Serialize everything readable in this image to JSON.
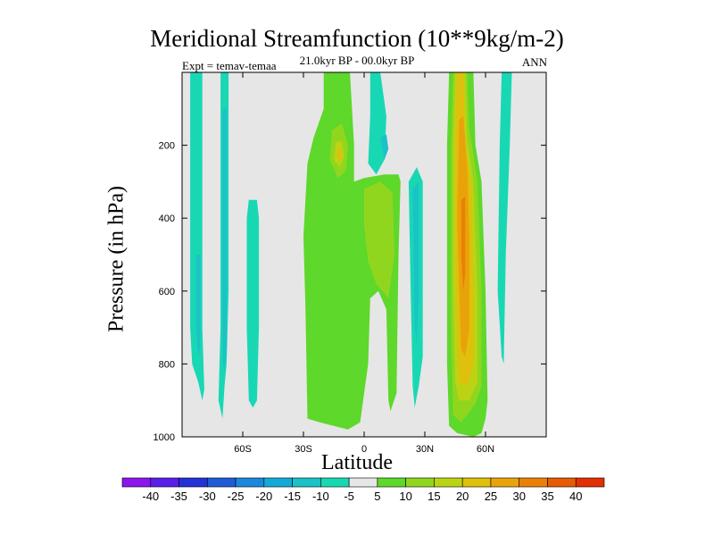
{
  "chart_data": {
    "type": "contour",
    "title": "Meridional Streamfunction (10**9kg/m-2)",
    "subtitle": "21.0kyr BP - 00.0kyr BP",
    "left_label": "Expt = temav-temaa",
    "right_label": "ANN",
    "xlabel": "Latitude",
    "ylabel": "Pressure (in hPa)",
    "xlim": [
      -90,
      90
    ],
    "ylim": [
      1000,
      0
    ],
    "x_ticks": [
      {
        "value": -60,
        "label": "60S"
      },
      {
        "value": -30,
        "label": "30S"
      },
      {
        "value": 0,
        "label": "0"
      },
      {
        "value": 30,
        "label": "30N"
      },
      {
        "value": 60,
        "label": "60N"
      }
    ],
    "y_ticks": [
      {
        "value": 200,
        "label": "200"
      },
      {
        "value": 400,
        "label": "400"
      },
      {
        "value": 600,
        "label": "600"
      },
      {
        "value": 800,
        "label": "800"
      },
      {
        "value": 1000,
        "label": "1000"
      }
    ],
    "background_color": "#e6e6e6",
    "colorbar": {
      "levels": [
        "-40",
        "-35",
        "-30",
        "-25",
        "-20",
        "-15",
        "-10",
        "-5",
        "5",
        "10",
        "15",
        "20",
        "25",
        "30",
        "35",
        "40"
      ],
      "colors": [
        "#8b16ec",
        "#5a1ee8",
        "#2431d8",
        "#1f5bd6",
        "#1c88dc",
        "#15a9d8",
        "#1bc2c7",
        "#18d8b4",
        "#e6e6e6",
        "#5ed82a",
        "#91d61e",
        "#bcd314",
        "#dfc00c",
        "#e9a30a",
        "#e98106",
        "#e65b04",
        "#e03004"
      ]
    },
    "regions": [
      {
        "name": "cell-neg-75S",
        "color": "#18d8b4",
        "points": [
          [
            -86,
            0
          ],
          [
            -80,
            0
          ],
          [
            -80,
            700
          ],
          [
            -79,
            870
          ],
          [
            -80,
            900
          ],
          [
            -82,
            850
          ],
          [
            -85,
            800
          ],
          [
            -86,
            700
          ]
        ]
      },
      {
        "name": "cell-neg-68S",
        "color": "#18d8b4",
        "points": [
          [
            -71,
            0
          ],
          [
            -67,
            0
          ],
          [
            -67,
            600
          ],
          [
            -68,
            800
          ],
          [
            -69,
            860
          ],
          [
            -70,
            950
          ],
          [
            -72,
            900
          ],
          [
            -71,
            700
          ]
        ]
      },
      {
        "name": "cell-neg-68S-inner",
        "color": "#1bc2c7",
        "points": [
          [
            -70,
            100
          ],
          [
            -68,
            100
          ],
          [
            -68,
            750
          ],
          [
            -69,
            820
          ],
          [
            -70,
            790
          ]
        ]
      },
      {
        "name": "cell-neg-78S-inner",
        "color": "#1bc2c7",
        "points": [
          [
            -83,
            500
          ],
          [
            -81,
            500
          ],
          [
            -81,
            750
          ],
          [
            -82,
            780
          ],
          [
            -83,
            700
          ]
        ]
      },
      {
        "name": "cell-neg-55S",
        "color": "#18d8b4",
        "points": [
          [
            -57,
            350
          ],
          [
            -53,
            350
          ],
          [
            -52,
            400
          ],
          [
            -52,
            700
          ],
          [
            -53,
            900
          ],
          [
            -55,
            920
          ],
          [
            -57,
            900
          ],
          [
            -58,
            700
          ],
          [
            -58,
            400
          ]
        ]
      },
      {
        "name": "cell-pos-center",
        "color": "#5ed82a",
        "points": [
          [
            -28,
            950
          ],
          [
            -29,
            650
          ],
          [
            -30,
            450
          ],
          [
            -28,
            250
          ],
          [
            -25,
            180
          ],
          [
            -20,
            100
          ],
          [
            -20,
            0
          ],
          [
            -7,
            0
          ],
          [
            -6,
            100
          ],
          [
            -5,
            200
          ],
          [
            -5,
            300
          ],
          [
            0,
            290
          ],
          [
            10,
            280
          ],
          [
            17,
            280
          ],
          [
            18,
            300
          ],
          [
            17,
            500
          ],
          [
            16,
            880
          ],
          [
            13,
            930
          ],
          [
            12,
            900
          ],
          [
            11,
            650
          ],
          [
            7,
            600
          ],
          [
            3,
            620
          ],
          [
            2,
            800
          ],
          [
            -2,
            960
          ],
          [
            -8,
            980
          ],
          [
            -15,
            970
          ],
          [
            -22,
            960
          ]
        ]
      },
      {
        "name": "cell-pos-15S-core",
        "color": "#91d61e",
        "points": [
          [
            -16,
            160
          ],
          [
            -11,
            140
          ],
          [
            -8,
            200
          ],
          [
            -9,
            270
          ],
          [
            -13,
            290
          ],
          [
            -17,
            240
          ]
        ]
      },
      {
        "name": "cell-pos-15S-inner",
        "color": "#bcd314",
        "points": [
          [
            -14,
            190
          ],
          [
            -11,
            190
          ],
          [
            -10,
            230
          ],
          [
            -12,
            260
          ],
          [
            -15,
            240
          ]
        ]
      },
      {
        "name": "cell-pos-15S-center",
        "color": "#dfc00c",
        "points": [
          [
            -13,
            210
          ],
          [
            -11,
            210
          ],
          [
            -11,
            240
          ],
          [
            -13,
            240
          ]
        ]
      },
      {
        "name": "cell-pos-eq-core",
        "color": "#91d61e",
        "points": [
          [
            0,
            320
          ],
          [
            8,
            300
          ],
          [
            14,
            330
          ],
          [
            15,
            500
          ],
          [
            12,
            620
          ],
          [
            6,
            580
          ],
          [
            2,
            520
          ],
          [
            0,
            420
          ]
        ]
      },
      {
        "name": "cell-neg-eq",
        "color": "#18d8b4",
        "points": [
          [
            3,
            0
          ],
          [
            8,
            0
          ],
          [
            11,
            120
          ],
          [
            10,
            240
          ],
          [
            6,
            280
          ],
          [
            2,
            250
          ],
          [
            3,
            120
          ]
        ]
      },
      {
        "name": "cell-neg-eq-inner",
        "color": "#1bc2c7",
        "points": [
          [
            8,
            180
          ],
          [
            11,
            170
          ],
          [
            12,
            210
          ],
          [
            10,
            240
          ]
        ]
      },
      {
        "name": "cell-neg-25N",
        "color": "#18d8b4",
        "points": [
          [
            22,
            300
          ],
          [
            26,
            260
          ],
          [
            29,
            300
          ],
          [
            29,
            780
          ],
          [
            27,
            860
          ],
          [
            25,
            920
          ],
          [
            24,
            860
          ],
          [
            23,
            600
          ]
        ]
      },
      {
        "name": "cell-neg-25N-inner",
        "color": "#1bc2c7",
        "points": [
          [
            24,
            320
          ],
          [
            27,
            300
          ],
          [
            27,
            600
          ],
          [
            26,
            750
          ],
          [
            25,
            700
          ]
        ]
      },
      {
        "name": "cell-pos-50N-l1",
        "color": "#5ed82a",
        "points": [
          [
            42,
            0
          ],
          [
            54,
            0
          ],
          [
            55,
            200
          ],
          [
            58,
            300
          ],
          [
            60,
            600
          ],
          [
            61,
            900
          ],
          [
            60,
            950
          ],
          [
            58,
            990
          ],
          [
            54,
            1000
          ],
          [
            46,
            990
          ],
          [
            42,
            970
          ],
          [
            41,
            800
          ],
          [
            41,
            200
          ]
        ]
      },
      {
        "name": "cell-pos-50N-l2",
        "color": "#91d61e",
        "points": [
          [
            44,
            0
          ],
          [
            51,
            0
          ],
          [
            52,
            150
          ],
          [
            56,
            300
          ],
          [
            58,
            600
          ],
          [
            58,
            860
          ],
          [
            55,
            910
          ],
          [
            48,
            960
          ],
          [
            44,
            940
          ],
          [
            43,
            700
          ],
          [
            43,
            200
          ]
        ]
      },
      {
        "name": "cell-pos-50N-l3",
        "color": "#bcd314",
        "points": [
          [
            45,
            0
          ],
          [
            50,
            0
          ],
          [
            51,
            180
          ],
          [
            54,
            300
          ],
          [
            56,
            600
          ],
          [
            56,
            850
          ],
          [
            52,
            900
          ],
          [
            47,
            900
          ],
          [
            45,
            850
          ],
          [
            44,
            600
          ],
          [
            44,
            200
          ]
        ]
      },
      {
        "name": "cell-pos-50N-l4",
        "color": "#dfc00c",
        "points": [
          [
            46,
            0
          ],
          [
            49,
            0
          ],
          [
            50,
            200
          ],
          [
            53,
            320
          ],
          [
            54,
            600
          ],
          [
            54,
            800
          ],
          [
            51,
            860
          ],
          [
            47,
            850
          ],
          [
            46,
            700
          ],
          [
            45,
            500
          ],
          [
            45,
            200
          ]
        ]
      },
      {
        "name": "cell-pos-50N-l5",
        "color": "#e9a30a",
        "points": [
          [
            47,
            130
          ],
          [
            49,
            120
          ],
          [
            51,
            260
          ],
          [
            52,
            450
          ],
          [
            52,
            700
          ],
          [
            50,
            780
          ],
          [
            48,
            760
          ],
          [
            47,
            600
          ],
          [
            46,
            400
          ]
        ]
      },
      {
        "name": "cell-pos-50N-l6",
        "color": "#e98106",
        "points": [
          [
            48,
            350
          ],
          [
            50,
            340
          ],
          [
            50,
            550
          ],
          [
            49,
            600
          ],
          [
            48,
            500
          ]
        ]
      },
      {
        "name": "cell-neg-70N",
        "color": "#18d8b4",
        "points": [
          [
            68,
            0
          ],
          [
            73,
            0
          ],
          [
            72,
            200
          ],
          [
            70,
            500
          ],
          [
            69,
            800
          ],
          [
            68,
            780
          ],
          [
            66,
            600
          ],
          [
            67,
            200
          ]
        ]
      }
    ]
  }
}
